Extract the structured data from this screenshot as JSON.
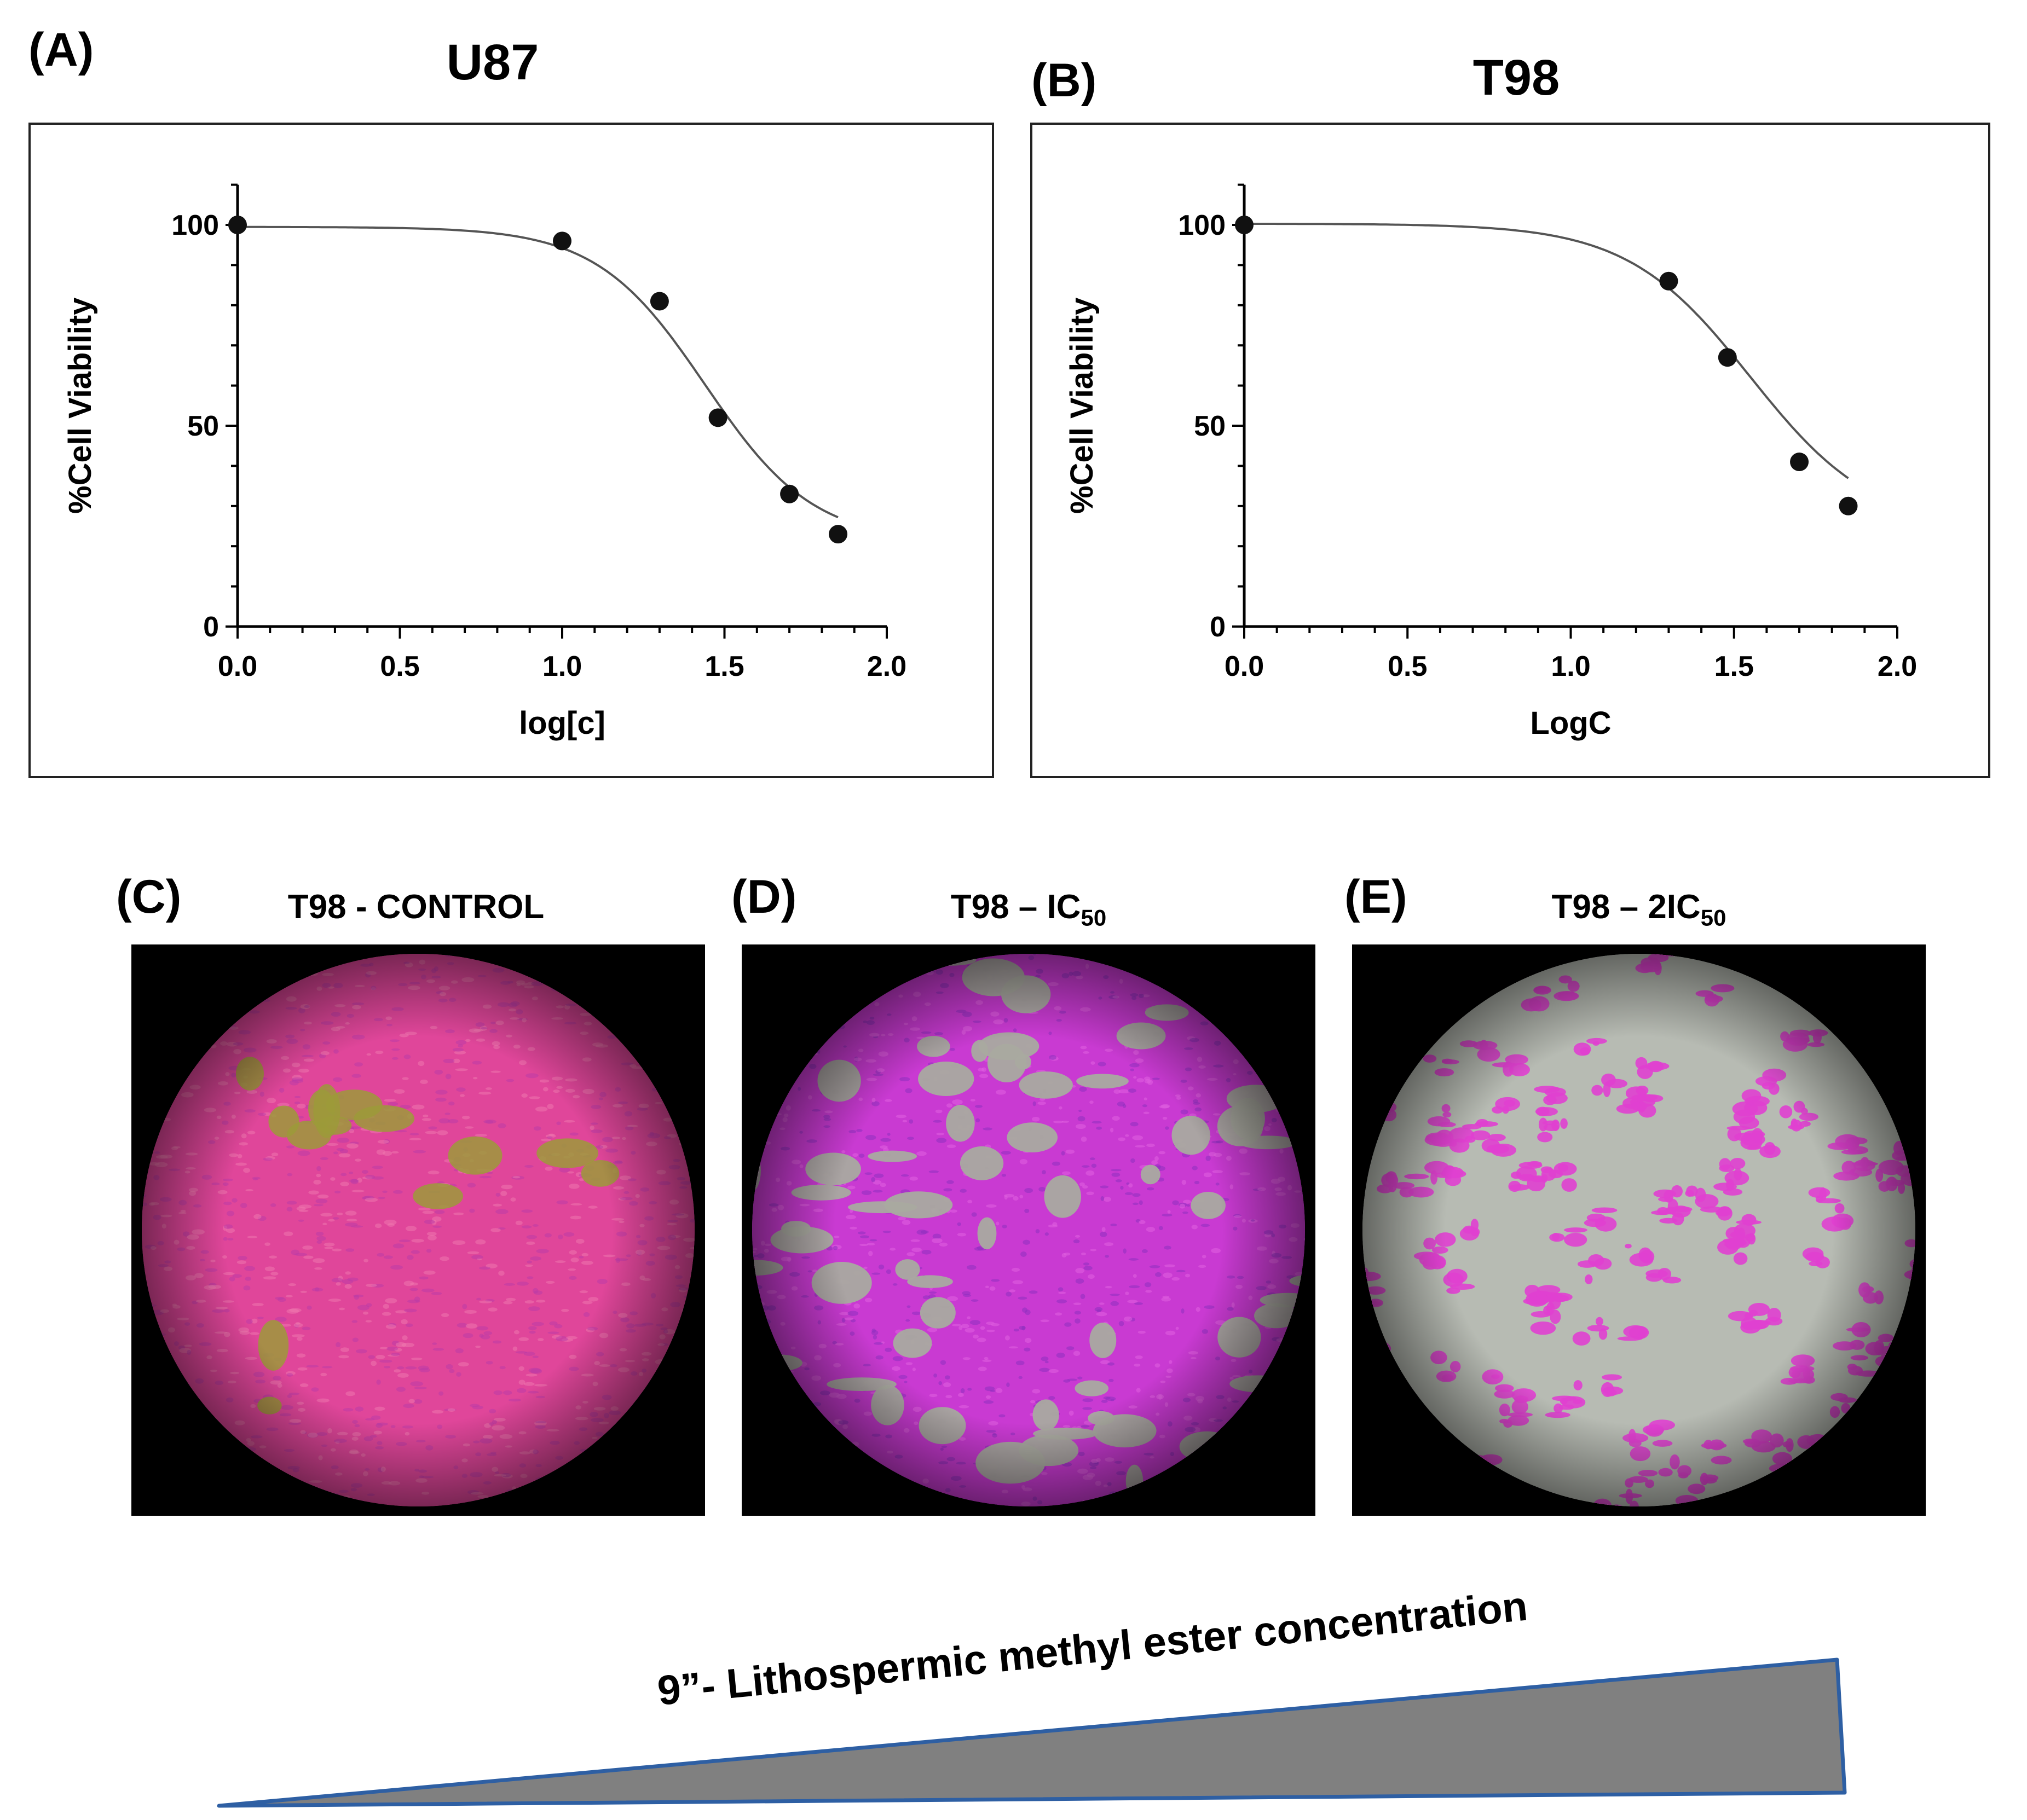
{
  "charts": [
    {
      "panel": "(A)",
      "title": "U87",
      "ylabel": "%Cell Viability",
      "xlabel": "log[c]",
      "xticks": [
        "0.0",
        "0.5",
        "1.0",
        "1.5",
        "2.0"
      ],
      "yticks": [
        "0",
        "50",
        "100"
      ]
    },
    {
      "panel": "(B)",
      "title": "T98",
      "ylabel": "%Cell Viability",
      "xlabel": "LogC",
      "xticks": [
        "0.0",
        "0.5",
        "1.0",
        "1.5",
        "2.0"
      ],
      "yticks": [
        "0",
        "50",
        "100"
      ]
    }
  ],
  "chart_data": [
    {
      "type": "scatter",
      "title": "U87",
      "xlabel": "log[c]",
      "ylabel": "%Cell Viability",
      "xlim": [
        0,
        2
      ],
      "ylim": [
        0,
        110
      ],
      "points": [
        {
          "x": 0.0,
          "y": 100
        },
        {
          "x": 1.0,
          "y": 96
        },
        {
          "x": 1.3,
          "y": 81
        },
        {
          "x": 1.48,
          "y": 52
        },
        {
          "x": 1.7,
          "y": 33
        },
        {
          "x": 1.85,
          "y": 23
        }
      ],
      "fit": {
        "model": "sigmoidal dose-response",
        "top": 99.5,
        "bottom": 21,
        "logIC50": 1.44,
        "hill": -2.6
      },
      "grid": false
    },
    {
      "type": "scatter",
      "title": "T98",
      "xlabel": "LogC",
      "ylabel": "%Cell Viability",
      "xlim": [
        0,
        2
      ],
      "ylim": [
        0,
        110
      ],
      "points": [
        {
          "x": 0.0,
          "y": 100
        },
        {
          "x": 1.3,
          "y": 86
        },
        {
          "x": 1.48,
          "y": 67
        },
        {
          "x": 1.7,
          "y": 41
        },
        {
          "x": 1.85,
          "y": 30
        }
      ],
      "fit": {
        "model": "sigmoidal dose-response",
        "top": 100.3,
        "bottom": 24,
        "logIC50": 1.55,
        "hill": -2.3
      },
      "grid": false
    }
  ],
  "micrographs": [
    {
      "panel": "(C)",
      "title": "T98 - CONTROL",
      "title_sub": "",
      "coverage": "dense"
    },
    {
      "panel": "(D)",
      "title": "T98 – IC",
      "title_sub": "50",
      "coverage": "medium"
    },
    {
      "panel": "(E)",
      "title": "T98 – 2IC",
      "title_sub": "50",
      "coverage": "sparse"
    }
  ],
  "wedge": {
    "label": "9”- Lithospermic methyl ester concentration",
    "fill_color": "#808080",
    "stroke_color": "#2e5fa3"
  },
  "colors": {
    "marker": "#111111",
    "curve": "#555555",
    "stain": "#e040d0",
    "stain_dark": "#9a2bb8",
    "background_field": "#b8bcb4"
  }
}
